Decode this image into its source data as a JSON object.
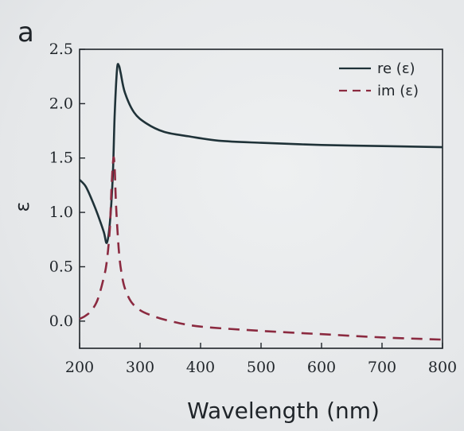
{
  "chart_data": {
    "type": "line",
    "panel_label": "a",
    "title": "",
    "xlabel": "Wavelength (nm)",
    "ylabel": "ε",
    "xlim": [
      200,
      800
    ],
    "ylim": [
      -0.25,
      2.5
    ],
    "xticks": [
      200,
      300,
      400,
      500,
      600,
      700,
      800
    ],
    "yticks": [
      0.0,
      0.5,
      1.0,
      1.5,
      2.0,
      2.5
    ],
    "ytick_labels": [
      "0.0",
      "0.5",
      "1.0",
      "1.5",
      "2.0",
      "2.5"
    ],
    "xtick_labels": [
      "200",
      "300",
      "400",
      "500",
      "600",
      "700",
      "800"
    ],
    "grid": false,
    "legend_position": "top-right",
    "series": [
      {
        "name": "re (ε)",
        "style": "solid",
        "color": "#1f3238",
        "x": [
          200,
          210,
          220,
          230,
          240,
          245,
          250,
          255,
          258,
          262,
          265,
          268,
          275,
          290,
          310,
          340,
          380,
          430,
          500,
          600,
          700,
          800
        ],
        "y": [
          1.3,
          1.24,
          1.12,
          0.98,
          0.82,
          0.72,
          0.9,
          1.35,
          1.9,
          2.32,
          2.35,
          2.28,
          2.1,
          1.92,
          1.82,
          1.74,
          1.7,
          1.66,
          1.64,
          1.62,
          1.61,
          1.6
        ]
      },
      {
        "name": "im (ε)",
        "style": "dashed",
        "color": "#8b2a40",
        "x": [
          200,
          210,
          220,
          230,
          240,
          245,
          250,
          253,
          256,
          258,
          260,
          263,
          266,
          270,
          275,
          285,
          300,
          320,
          350,
          400,
          500,
          600,
          700,
          800
        ],
        "y": [
          0.02,
          0.05,
          0.1,
          0.2,
          0.4,
          0.55,
          0.85,
          1.25,
          1.5,
          1.4,
          1.1,
          0.8,
          0.58,
          0.42,
          0.3,
          0.18,
          0.1,
          0.05,
          0.0,
          -0.05,
          -0.09,
          -0.12,
          -0.15,
          -0.17
        ]
      }
    ]
  }
}
